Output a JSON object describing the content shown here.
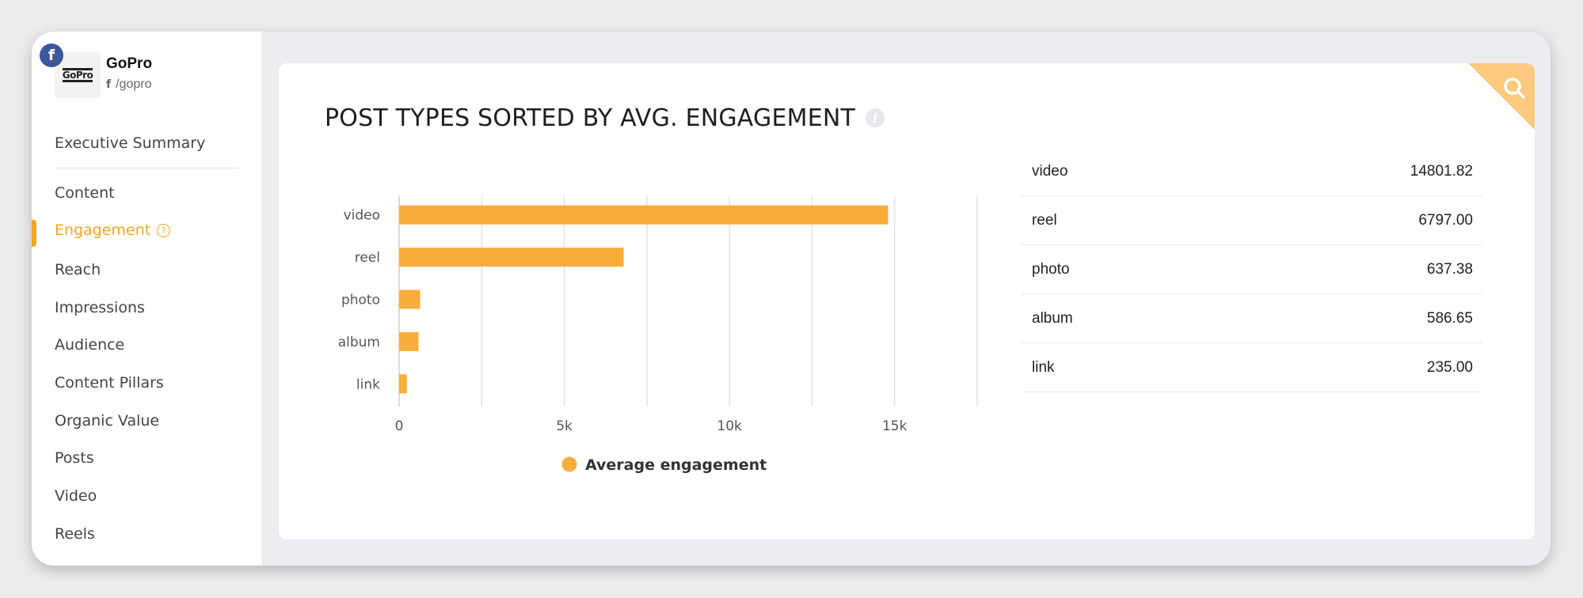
{
  "brand": {
    "name": "GoPro",
    "handle": "/gopro",
    "logo_text": "GoPro",
    "network_icon": "facebook-icon"
  },
  "nav": {
    "items": [
      {
        "label": "Executive Summary",
        "active": false
      },
      {
        "label": "Content",
        "active": false
      },
      {
        "label": "Engagement",
        "active": true
      },
      {
        "label": "Reach",
        "active": false
      },
      {
        "label": "Impressions",
        "active": false
      },
      {
        "label": "Audience",
        "active": false
      },
      {
        "label": "Content Pillars",
        "active": false
      },
      {
        "label": "Organic Value",
        "active": false
      },
      {
        "label": "Posts",
        "active": false
      },
      {
        "label": "Video",
        "active": false
      },
      {
        "label": "Reels",
        "active": false
      }
    ]
  },
  "card": {
    "title": "POST TYPES SORTED BY AVG. ENGAGEMENT"
  },
  "colors": {
    "accent": "#f5a623",
    "bar": "#fbad3b",
    "corner": "#fcc980"
  },
  "chart_data": {
    "type": "bar",
    "orientation": "horizontal",
    "categories": [
      "video",
      "reel",
      "photo",
      "album",
      "link"
    ],
    "series": [
      {
        "name": "Average engagement",
        "values": [
          14801.82,
          6797.0,
          637.38,
          586.65,
          235.0
        ]
      }
    ],
    "x_ticks": [
      "0",
      "5k",
      "10k",
      "15k"
    ],
    "xlim": [
      0,
      17500
    ],
    "grid": true,
    "legend": "bottom"
  },
  "table": {
    "rows": [
      {
        "label": "video",
        "value": "14801.82"
      },
      {
        "label": "reel",
        "value": "6797.00"
      },
      {
        "label": "photo",
        "value": "637.38"
      },
      {
        "label": "album",
        "value": "586.65"
      },
      {
        "label": "link",
        "value": "235.00"
      }
    ]
  }
}
